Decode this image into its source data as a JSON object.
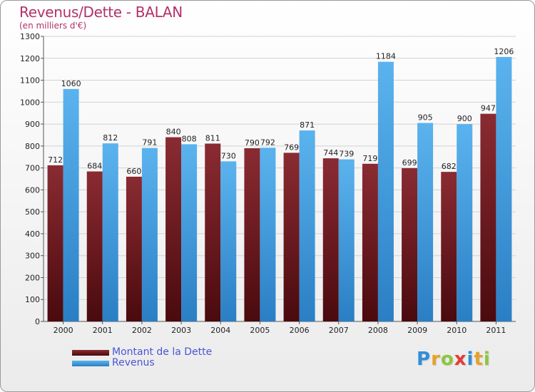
{
  "header": {
    "title": "Revenus/Dette - BALAN",
    "subtitle": "(en milliers d'€)"
  },
  "colors": {
    "title": "#b3306a",
    "dette": "#7a1f26",
    "revenus": "#3f9ee0",
    "legend_text": "#4a55d6"
  },
  "chart_data": {
    "type": "bar",
    "categories": [
      "2000",
      "2001",
      "2002",
      "2003",
      "2004",
      "2005",
      "2006",
      "2007",
      "2008",
      "2009",
      "2010",
      "2011"
    ],
    "series": [
      {
        "name": "Montant de la Dette",
        "values": [
          712,
          684,
          660,
          840,
          811,
          790,
          769,
          744,
          719,
          699,
          682,
          947
        ]
      },
      {
        "name": "Revenus",
        "values": [
          1060,
          812,
          791,
          808,
          730,
          792,
          871,
          739,
          1184,
          905,
          900,
          1206
        ]
      }
    ],
    "ylim": [
      0,
      1300
    ],
    "yticks": [
      0,
      100,
      200,
      300,
      400,
      500,
      600,
      700,
      800,
      900,
      1000,
      1100,
      1200,
      1300
    ],
    "grid": true,
    "legend_position": "bottom-left"
  },
  "legend": {
    "items": [
      {
        "label": "Montant de la Dette",
        "swatch": "dette"
      },
      {
        "label": "Revenus",
        "swatch": "revenus"
      }
    ]
  },
  "logo": {
    "letters": [
      "P",
      "r",
      "o",
      "x",
      "i",
      "t",
      "i"
    ],
    "colors": [
      "#2e8fd8",
      "#e6a12a",
      "#8dc63f",
      "#e23d35",
      "#2e8fd8",
      "#e6a12a",
      "#8dc63f"
    ]
  }
}
